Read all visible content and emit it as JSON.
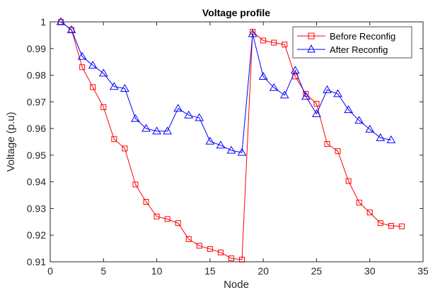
{
  "chart_data": {
    "type": "line",
    "title": "Voltage profile",
    "xlabel": "Node",
    "ylabel": "Voltage (p.u)",
    "xlim": [
      0,
      35
    ],
    "ylim": [
      0.91,
      1
    ],
    "xticks": [
      "0",
      "5",
      "10",
      "15",
      "20",
      "25",
      "30",
      "35"
    ],
    "yticks": [
      "0.91",
      "0.92",
      "0.93",
      "0.94",
      "0.95",
      "0.96",
      "0.97",
      "0.98",
      "0.99",
      "1"
    ],
    "grid": false,
    "legend_position": "top-right",
    "series": [
      {
        "name": "Before Reconfig",
        "color": "#ff0000",
        "marker": "square",
        "x": [
          1,
          2,
          3,
          4,
          5,
          6,
          7,
          8,
          9,
          10,
          11,
          12,
          13,
          14,
          15,
          16,
          17,
          18,
          19,
          20,
          21,
          22,
          23,
          24,
          25,
          26,
          27,
          28,
          29,
          30,
          31,
          32,
          33
        ],
        "y": [
          1.0,
          0.997,
          0.983,
          0.9755,
          0.968,
          0.956,
          0.9525,
          0.939,
          0.9325,
          0.927,
          0.926,
          0.9245,
          0.9185,
          0.916,
          0.9148,
          0.9135,
          0.9113,
          0.9108,
          0.9963,
          0.993,
          0.9922,
          0.9915,
          0.9795,
          0.973,
          0.9693,
          0.9542,
          0.9515,
          0.9403,
          0.9322,
          0.9285,
          0.9245,
          0.9235,
          0.9233
        ]
      },
      {
        "name": "After Reconfig",
        "color": "#0000ff",
        "marker": "triangle",
        "x": [
          1,
          2,
          3,
          4,
          5,
          6,
          7,
          8,
          9,
          10,
          11,
          12,
          13,
          14,
          15,
          16,
          17,
          18,
          19,
          20,
          21,
          22,
          23,
          24,
          25,
          26,
          27,
          28,
          29,
          30,
          31,
          32
        ],
        "y": [
          1.0,
          0.997,
          0.987,
          0.9837,
          0.9807,
          0.9757,
          0.975,
          0.9637,
          0.96,
          0.959,
          0.959,
          0.9675,
          0.965,
          0.964,
          0.9552,
          0.9537,
          0.9518,
          0.951,
          0.9955,
          0.9795,
          0.9753,
          0.9725,
          0.9818,
          0.972,
          0.9655,
          0.9745,
          0.973,
          0.967,
          0.963,
          0.9597,
          0.9565,
          0.9557
        ]
      }
    ]
  }
}
